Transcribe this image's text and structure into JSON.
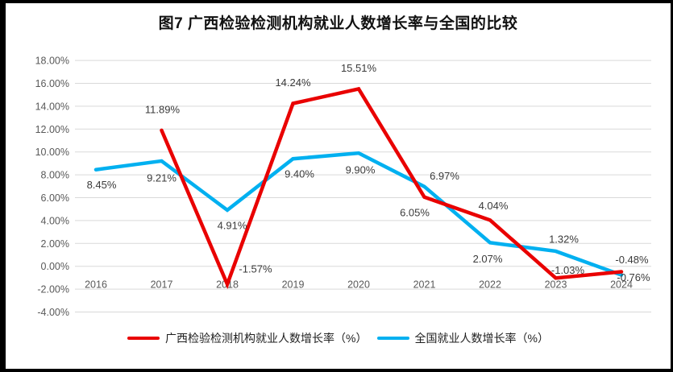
{
  "window": {
    "background": "#ffffff",
    "frame_color": "#000000"
  },
  "chart_data": {
    "type": "line",
    "title": "图7 广西检验检测机构就业人数增长率与全国的比较",
    "categories": [
      "2016",
      "2017",
      "2018",
      "2019",
      "2020",
      "2021",
      "2022",
      "2023",
      "2024"
    ],
    "series": [
      {
        "name": "广西检验检测机构就业人数增长率（%）",
        "color": "#e90000",
        "values": [
          null,
          11.89,
          -1.57,
          14.24,
          15.51,
          6.05,
          4.04,
          -1.03,
          -0.48
        ],
        "labels": [
          "",
          "11.89%",
          "-1.57%",
          "14.24%",
          "15.51%",
          "6.05%",
          "4.04%",
          "-1.03%",
          "-0.48%"
        ],
        "label_offsets": [
          null,
          [
            1,
            -26
          ],
          [
            35,
            -19
          ],
          [
            0,
            -26
          ],
          [
            0,
            -26
          ],
          [
            -12,
            19
          ],
          [
            4,
            -18
          ],
          [
            15,
            -10
          ],
          [
            13,
            -15
          ]
        ]
      },
      {
        "name": "全国就业人数增长率（%）",
        "color": "#00b0f0",
        "values": [
          8.45,
          9.21,
          4.91,
          9.4,
          9.9,
          6.97,
          2.07,
          1.32,
          -0.76
        ],
        "labels": [
          "8.45%",
          "9.21%",
          "4.91%",
          "9.40%",
          "9.90%",
          "6.97%",
          "2.07%",
          "1.32%",
          "-0.76%"
        ],
        "label_offsets": [
          [
            7,
            19
          ],
          [
            0,
            21
          ],
          [
            6,
            19
          ],
          [
            8,
            19
          ],
          [
            2,
            21
          ],
          [
            25,
            -13
          ],
          [
            -3,
            20
          ],
          [
            10,
            -15
          ],
          [
            15,
            3
          ]
        ]
      }
    ],
    "y_axis": {
      "min": -4,
      "max": 18,
      "step": 2,
      "tick_labels": [
        "18.00%",
        "16.00%",
        "14.00%",
        "12.00%",
        "10.00%",
        "8.00%",
        "6.00%",
        "4.00%",
        "2.00%",
        "0.00%",
        "-2.00%",
        "-4.00%"
      ]
    },
    "x_axis": {
      "tick_labels": [
        "2016",
        "2017",
        "2018",
        "2019",
        "2020",
        "2021",
        "2022",
        "2023",
        "2024"
      ]
    },
    "grid": true,
    "gridline_color": "#d9d9d9",
    "tick_color": "#595959",
    "data_label_color": "#3a3a3a",
    "legend_position": "bottom"
  }
}
